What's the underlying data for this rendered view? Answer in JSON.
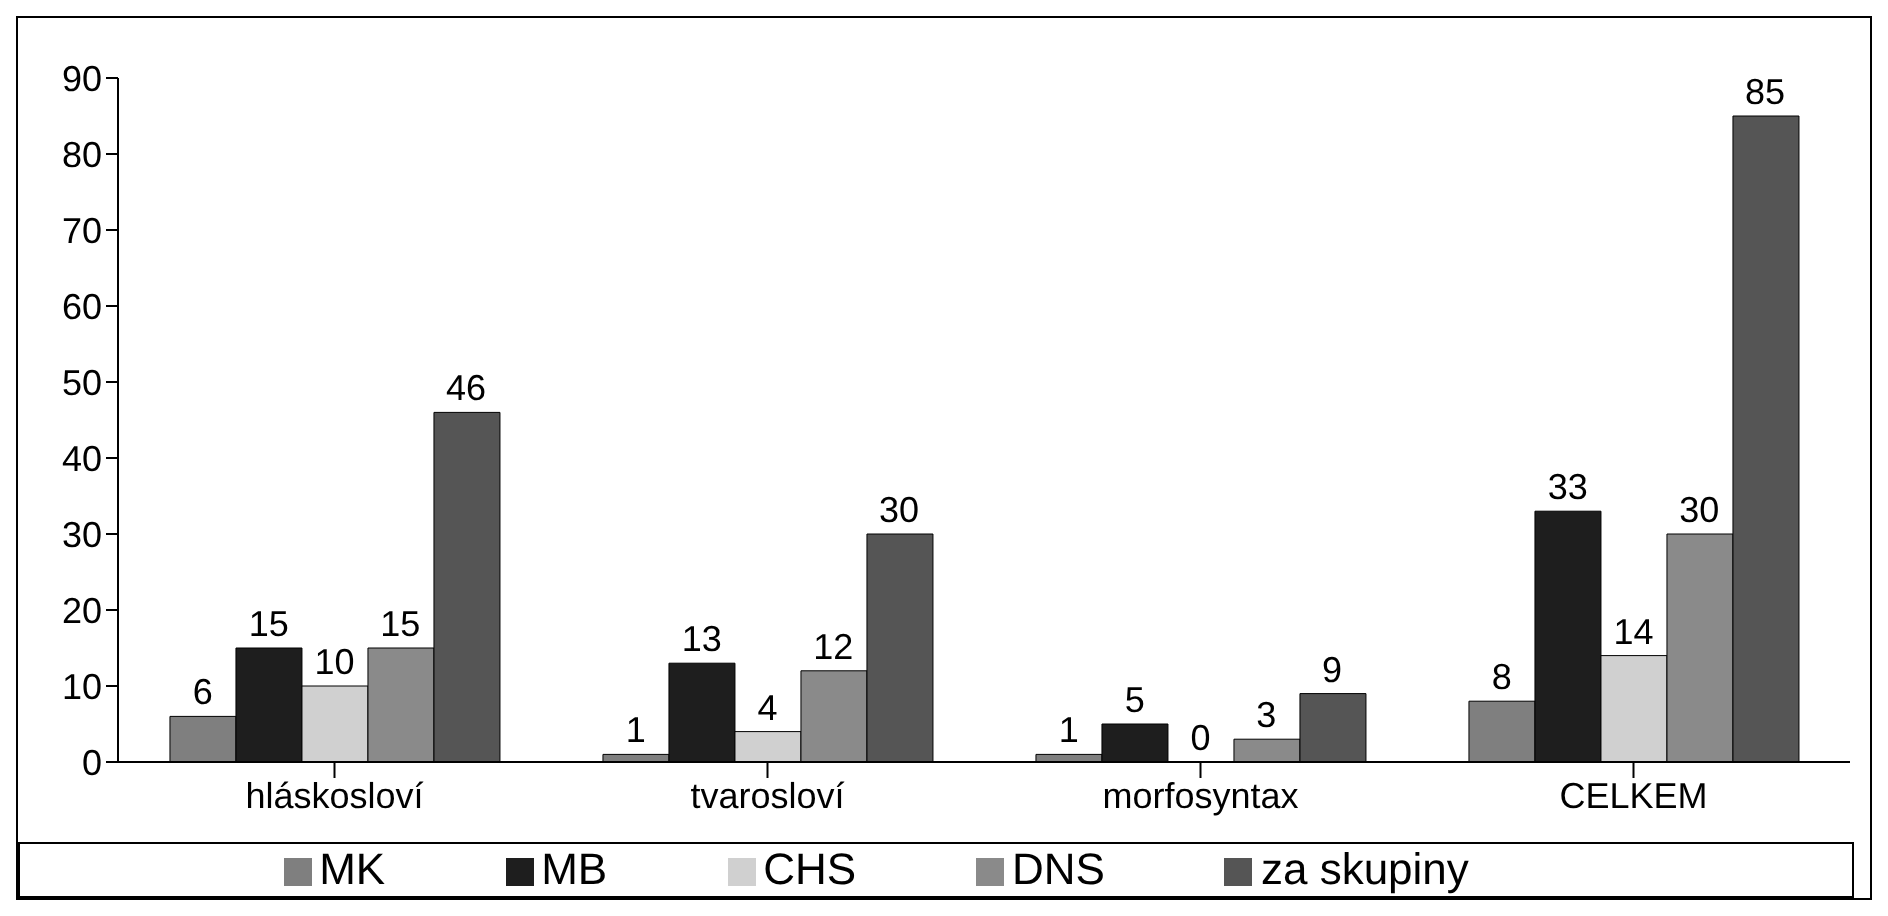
{
  "chart_data": {
    "type": "bar",
    "categories": [
      "hláskosloví",
      "tvarosloví",
      "morfosyntax",
      "CELKEM"
    ],
    "series": [
      {
        "name": "MK",
        "color": "#7f7f7f",
        "values": [
          6,
          1,
          1,
          8
        ]
      },
      {
        "name": "MB",
        "color": "#1e1e1e",
        "values": [
          15,
          13,
          5,
          33
        ]
      },
      {
        "name": "CHS",
        "color": "#d0d0d0",
        "values": [
          10,
          4,
          0,
          14
        ]
      },
      {
        "name": "DNS",
        "color": "#8a8a8a",
        "values": [
          15,
          12,
          3,
          30
        ]
      },
      {
        "name": "za skupiny",
        "color": "#555555",
        "values": [
          46,
          30,
          9,
          85
        ]
      }
    ],
    "ylim": [
      0,
      90
    ],
    "yticks": [
      0,
      10,
      20,
      30,
      40,
      50,
      60,
      70,
      80,
      90
    ],
    "data_labels": true,
    "legend": "bottom",
    "grid": false
  }
}
